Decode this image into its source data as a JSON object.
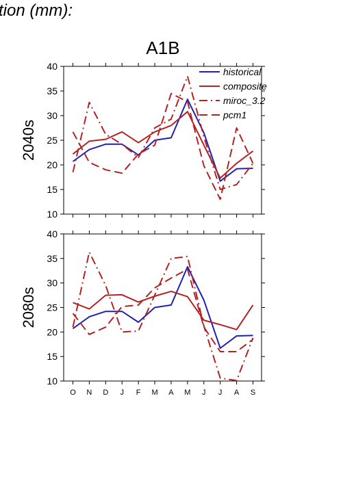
{
  "header": {
    "heading_text": "tion (mm):",
    "scenario": "A1B"
  },
  "colors": {
    "historical": "#1f1fb4",
    "composite": "#b22222",
    "miroc_3.2": "#b22222",
    "pcm1": "#b22222"
  },
  "chart_data": [
    {
      "type": "line",
      "title": "A1B",
      "ylabel": "2040s",
      "xlabel": "",
      "categories": [
        "O",
        "N",
        "D",
        "J",
        "F",
        "M",
        "A",
        "M",
        "J",
        "J",
        "A",
        "S"
      ],
      "ylim": [
        10,
        40
      ],
      "yticks": [
        10,
        15,
        20,
        25,
        30,
        35,
        40
      ],
      "grid": false,
      "legend_position": "top-right",
      "series": [
        {
          "name": "historical",
          "style": "solid",
          "values": [
            20.7,
            23.1,
            24.2,
            24.2,
            22.0,
            25.0,
            25.5,
            33.3,
            26.5,
            16.7,
            19.2,
            19.3
          ]
        },
        {
          "name": "composite",
          "style": "solid",
          "values": [
            22.2,
            24.8,
            25.2,
            26.7,
            24.5,
            26.7,
            28.0,
            30.8,
            24.0,
            17.3,
            20.3,
            22.8
          ]
        },
        {
          "name": "miroc_3.2",
          "style": "dashdot",
          "values": [
            18.5,
            32.7,
            26.2,
            24.2,
            21.5,
            27.5,
            29.3,
            38.0,
            25.7,
            15.0,
            16.0,
            20.3
          ]
        },
        {
          "name": "pcm1",
          "style": "dashed",
          "values": [
            26.7,
            20.5,
            19.0,
            18.3,
            22.2,
            24.0,
            34.5,
            32.8,
            19.8,
            13.0,
            27.5,
            20.3
          ]
        }
      ]
    },
    {
      "type": "line",
      "title": "",
      "ylabel": "2080s",
      "xlabel": "",
      "categories": [
        "O",
        "N",
        "D",
        "J",
        "F",
        "M",
        "A",
        "M",
        "J",
        "J",
        "A",
        "S"
      ],
      "ylim": [
        10,
        40
      ],
      "yticks": [
        10,
        15,
        20,
        25,
        30,
        35,
        40
      ],
      "grid": false,
      "series": [
        {
          "name": "historical",
          "style": "solid",
          "values": [
            20.7,
            23.1,
            24.2,
            24.2,
            22.0,
            25.0,
            25.5,
            33.3,
            26.5,
            16.7,
            19.2,
            19.3
          ]
        },
        {
          "name": "composite",
          "style": "solid",
          "values": [
            26.0,
            24.7,
            27.5,
            27.6,
            26.1,
            27.3,
            28.3,
            27.2,
            22.4,
            21.5,
            20.5,
            25.5
          ]
        },
        {
          "name": "miroc_3.2",
          "style": "dashdot",
          "values": [
            21.0,
            36.3,
            29.5,
            20.0,
            20.2,
            27.5,
            35.0,
            35.4,
            21.2,
            10.6,
            10.1,
            18.8
          ]
        },
        {
          "name": "pcm1",
          "style": "dashed",
          "values": [
            23.8,
            19.5,
            21.0,
            25.2,
            25.5,
            29.0,
            31.0,
            32.8,
            21.0,
            16.0,
            16.0,
            18.5
          ]
        }
      ]
    }
  ]
}
